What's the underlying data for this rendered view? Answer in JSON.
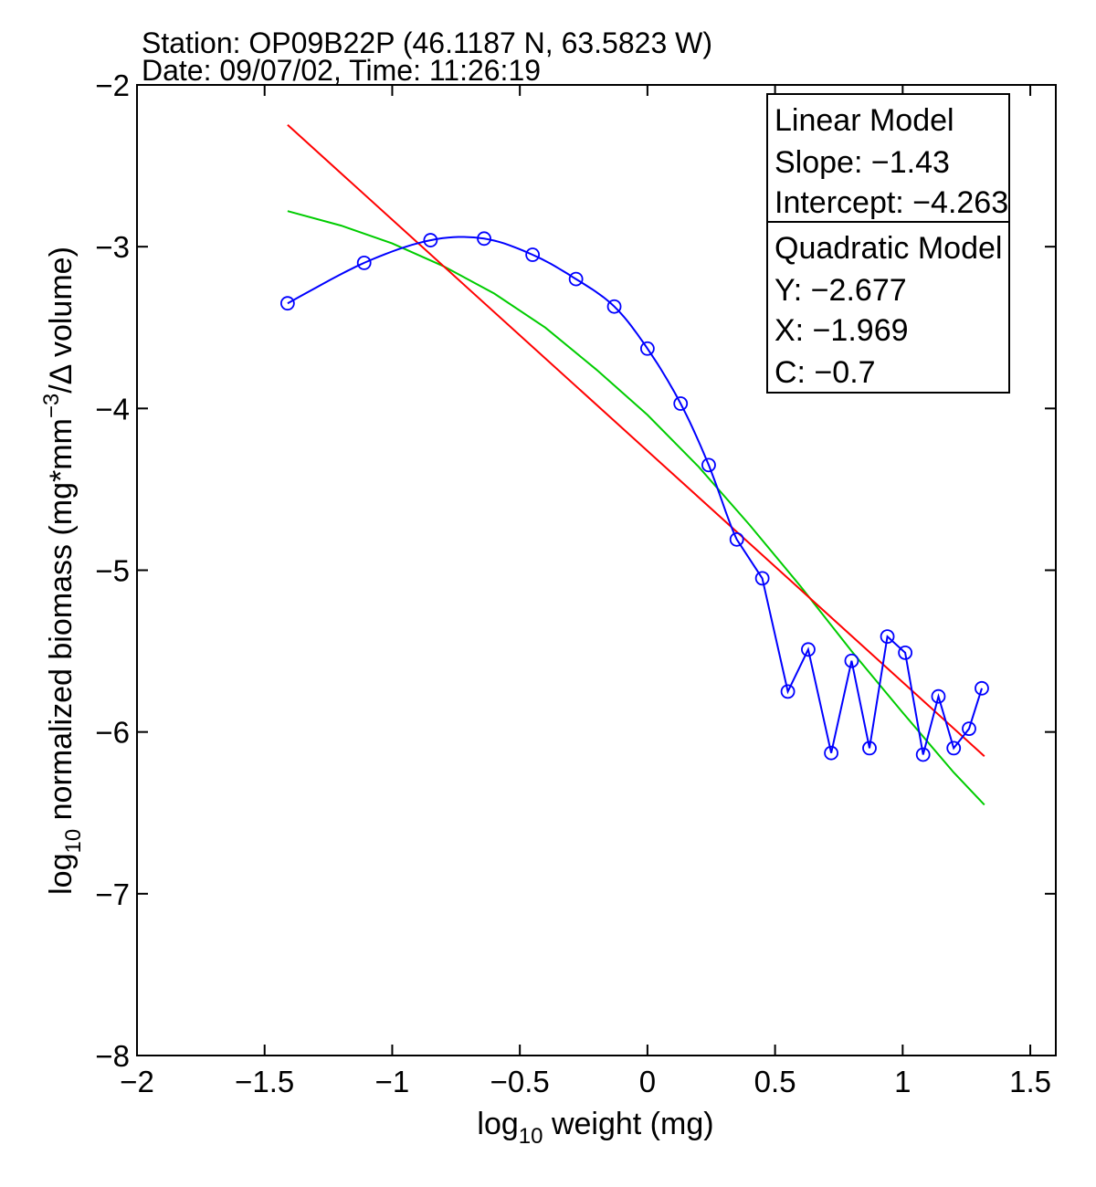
{
  "chart_data": {
    "type": "line",
    "title_lines": [
      "Station: OP09B22P (46.1187 N, 63.5823 W)",
      "Date: 09/07/02, Time: 11:26:19"
    ],
    "xlabel": {
      "base": "log",
      "sub": "10",
      "rest": " weight (mg)"
    },
    "ylabel": {
      "base": "log",
      "sub": "10",
      "mid": " normalized biomass (mg*mm",
      "sup": "−3",
      "rest": "/Δ volume)"
    },
    "xlim": [
      -2,
      1.6
    ],
    "ylim": [
      -8,
      -2
    ],
    "xticks": [
      -2,
      -1.5,
      -1,
      -0.5,
      0,
      0.5,
      1,
      1.5
    ],
    "yticks": [
      -8,
      -7,
      -6,
      -5,
      -4,
      -3,
      -2
    ],
    "xtick_labels": [
      "−2",
      "−1.5",
      "−1",
      "−0.5",
      "0",
      "0.5",
      "1",
      "1.5"
    ],
    "ytick_labels": [
      "−8",
      "−7",
      "−6",
      "−5",
      "−4",
      "−3",
      "−2"
    ],
    "grid": false,
    "legend_position": "top-right",
    "series": [
      {
        "kind": "observed",
        "color": "#0000ff",
        "marker": "circle",
        "x": [
          -1.41,
          -1.11,
          -0.85,
          -0.64,
          -0.45,
          -0.28,
          -0.13,
          0.0,
          0.13,
          0.24,
          0.35,
          0.45,
          0.55,
          0.63,
          0.72,
          0.8,
          0.87,
          0.94,
          1.01,
          1.08,
          1.14,
          1.2,
          1.26,
          1.31
        ],
        "y": [
          -3.35,
          -3.1,
          -2.96,
          -2.95,
          -3.05,
          -3.2,
          -3.37,
          -3.63,
          -3.97,
          -4.35,
          -4.81,
          -5.05,
          -5.75,
          -5.49,
          -6.13,
          -5.56,
          -6.1,
          -5.41,
          -5.51,
          -6.14,
          -5.78,
          -6.1,
          -5.98,
          -5.73
        ]
      },
      {
        "kind": "linear_fit",
        "color": "#ff0000",
        "x": [
          -1.41,
          1.32
        ],
        "y": [
          -2.247,
          -6.15
        ]
      },
      {
        "kind": "quadratic_fit",
        "color": "#00cc00",
        "x": [
          -1.41,
          -1.2,
          -1.0,
          -0.8,
          -0.6,
          -0.4,
          -0.2,
          0.0,
          0.2,
          0.4,
          0.6,
          0.8,
          1.0,
          1.2,
          1.32
        ],
        "y": [
          -2.78,
          -2.87,
          -2.98,
          -3.12,
          -3.29,
          -3.5,
          -3.76,
          -4.04,
          -4.36,
          -4.72,
          -5.1,
          -5.5,
          -5.88,
          -6.25,
          -6.45
        ]
      }
    ],
    "legend": {
      "linear": [
        "Linear Model",
        "Slope: −1.43",
        "Intercept: −4.263"
      ],
      "quadratic": [
        "Quadratic Model",
        "Y: −2.677",
        "X: −1.969",
        "C: −0.7"
      ]
    }
  }
}
